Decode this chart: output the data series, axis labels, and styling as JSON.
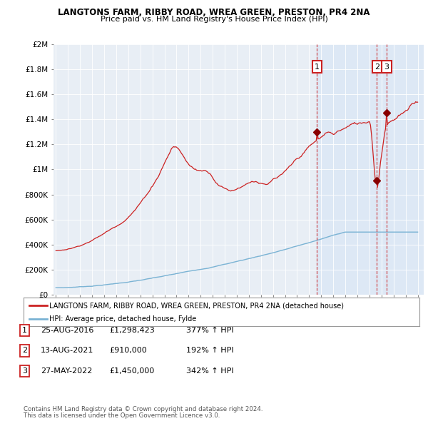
{
  "title": "LANGTONS FARM, RIBBY ROAD, WREA GREEN, PRESTON, PR4 2NA",
  "subtitle": "Price paid vs. HM Land Registry's House Price Index (HPI)",
  "ylabel_ticks": [
    "£0",
    "£200K",
    "£400K",
    "£600K",
    "£800K",
    "£1M",
    "£1.2M",
    "£1.4M",
    "£1.6M",
    "£1.8M",
    "£2M"
  ],
  "ylim": [
    0,
    2000000
  ],
  "ytick_vals": [
    0,
    200000,
    400000,
    600000,
    800000,
    1000000,
    1200000,
    1400000,
    1600000,
    1800000,
    2000000
  ],
  "xlim_start": 1994.8,
  "xlim_end": 2025.5,
  "sale_dates": [
    2016.65,
    2021.62,
    2022.41
  ],
  "sale_prices": [
    1298423,
    910000,
    1450000
  ],
  "sale_labels": [
    "1",
    "2",
    "3"
  ],
  "legend_line1": "LANGTONS FARM, RIBBY ROAD, WREA GREEN, PRESTON, PR4 2NA (detached house)",
  "legend_line2": "HPI: Average price, detached house, Fylde",
  "table_data": [
    [
      "1",
      "25-AUG-2016",
      "£1,298,423",
      "377% ↑ HPI"
    ],
    [
      "2",
      "13-AUG-2021",
      "£910,000",
      "192% ↑ HPI"
    ],
    [
      "3",
      "27-MAY-2022",
      "£1,450,000",
      "342% ↑ HPI"
    ]
  ],
  "footnote1": "Contains HM Land Registry data © Crown copyright and database right 2024.",
  "footnote2": "This data is licensed under the Open Government Licence v3.0.",
  "hpi_color": "#7ab3d4",
  "price_color": "#cc2222",
  "dashed_color": "#cc2222",
  "background_chart": "#e8eef5",
  "background_fig": "#ffffff",
  "highlight_bg": "#dde8f5"
}
